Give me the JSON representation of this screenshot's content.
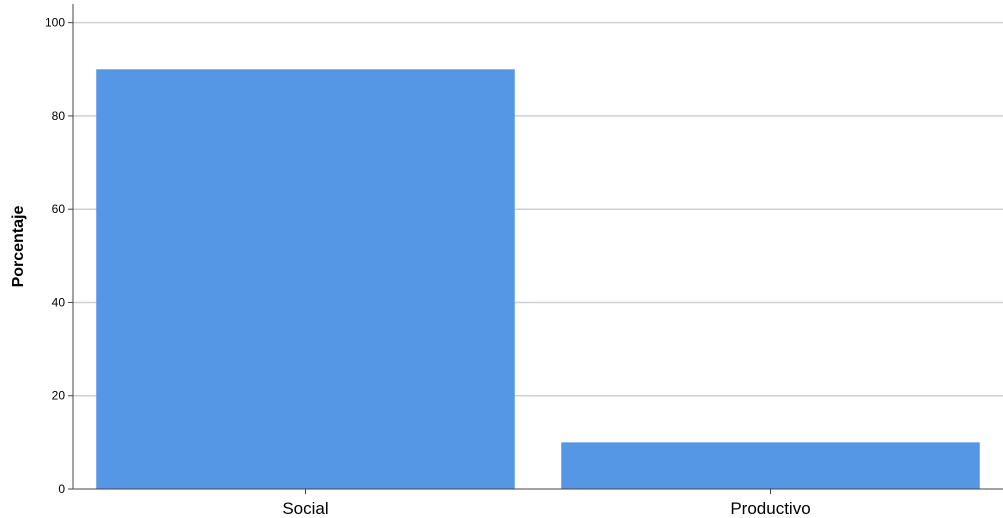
{
  "chart_data": {
    "type": "bar",
    "title": "",
    "xlabel": "",
    "ylabel": "Porcentaje",
    "categories": [
      "Social",
      "Productivo"
    ],
    "values": [
      90,
      10
    ],
    "ylim": [
      0,
      104
    ],
    "yticks": [
      0,
      20,
      40,
      60,
      80,
      100
    ],
    "grid": true,
    "legend": "none",
    "colors": {
      "bar": "#5596e5",
      "grid": "#d0d0d0",
      "axis": "#444444"
    }
  }
}
